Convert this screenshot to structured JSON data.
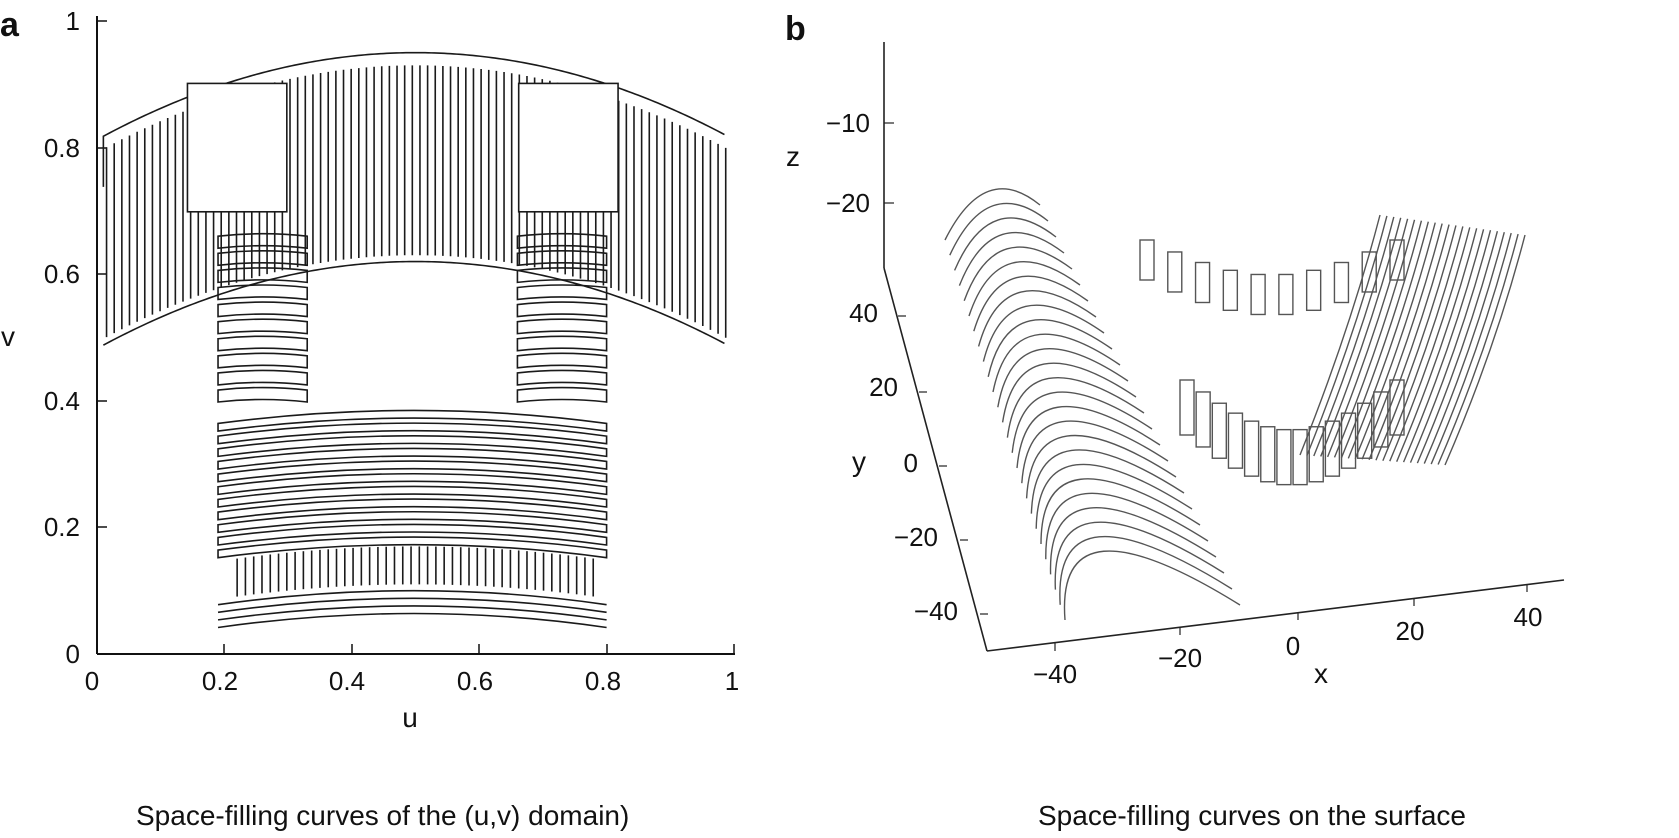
{
  "panel_a": {
    "letter": "a",
    "caption": "Space-filling curves of the (u,v) domain)",
    "xlabel": "u",
    "ylabel": "v",
    "xticks": [
      "0",
      "0.2",
      "0.4",
      "0.6",
      "0.8",
      "1"
    ],
    "yticks": [
      "0",
      "0.2",
      "0.4",
      "0.6",
      "0.8",
      "1"
    ],
    "xlim": [
      0,
      1
    ],
    "ylim": [
      0,
      1
    ]
  },
  "panel_b": {
    "letter": "b",
    "caption": "Space-filling curves on the surface",
    "xlabel": "x",
    "ylabel": "y",
    "zlabel": "z",
    "xticks": [
      "−40",
      "−20",
      "0",
      "20",
      "40"
    ],
    "yticks": [
      "−40",
      "−20",
      "0",
      "20",
      "40"
    ],
    "zticks": [
      "−20",
      "−10"
    ]
  }
}
